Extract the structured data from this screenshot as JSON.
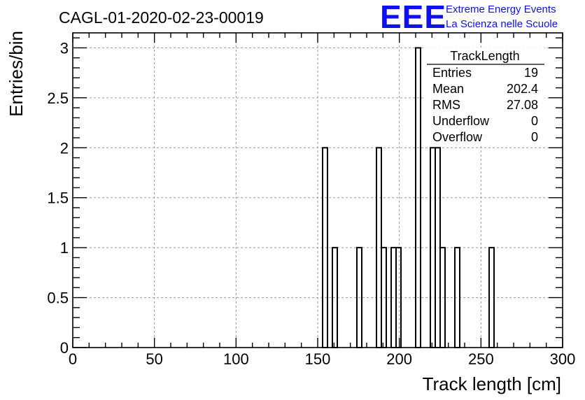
{
  "header": {
    "run_title": "CAGL-01-2020-02-23-00019",
    "logo_letters": "EEE",
    "logo_line1": "Extreme Energy Events",
    "logo_line2": "La Scienza nelle Scuole"
  },
  "stats_box": {
    "title": "TrackLength",
    "rows": [
      {
        "label": "Entries",
        "value": "19"
      },
      {
        "label": "Mean",
        "value": "202.4"
      },
      {
        "label": "RMS",
        "value": "27.08"
      },
      {
        "label": "Underflow",
        "value": "0"
      },
      {
        "label": "Overflow",
        "value": "0"
      }
    ]
  },
  "chart_data": {
    "type": "bar",
    "histogram": true,
    "xlabel": "Track length [cm]",
    "ylabel": "Entries/bin",
    "xlim": [
      0,
      300
    ],
    "ylim": [
      0,
      3.15
    ],
    "grid": true,
    "x_ticks": [
      0,
      50,
      100,
      150,
      200,
      250,
      300
    ],
    "x_tick_labels": [
      "0",
      "50",
      "100",
      "150",
      "200",
      "250",
      "300"
    ],
    "y_ticks": [
      0,
      0.5,
      1,
      1.5,
      2,
      2.5,
      3
    ],
    "y_tick_labels": [
      "0",
      "0.5",
      "1",
      "1.5",
      "2",
      "2.5",
      "3"
    ],
    "bin_width": 3,
    "bins": [
      {
        "x_low": 153,
        "value": 2
      },
      {
        "x_low": 159,
        "value": 1
      },
      {
        "x_low": 174,
        "value": 1
      },
      {
        "x_low": 186,
        "value": 2
      },
      {
        "x_low": 189,
        "value": 1
      },
      {
        "x_low": 195,
        "value": 1
      },
      {
        "x_low": 198,
        "value": 1
      },
      {
        "x_low": 210,
        "value": 3
      },
      {
        "x_low": 219,
        "value": 2
      },
      {
        "x_low": 222,
        "value": 2
      },
      {
        "x_low": 225,
        "value": 1
      },
      {
        "x_low": 234,
        "value": 1
      },
      {
        "x_low": 255,
        "value": 1
      }
    ]
  }
}
